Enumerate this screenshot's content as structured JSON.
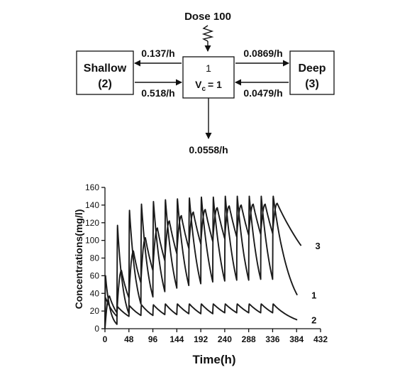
{
  "diagram": {
    "dose_label": "Dose 100",
    "central": {
      "number": "1",
      "volume": "V",
      "volume_sub": "c",
      "volume_value": "= 1"
    },
    "shallow": {
      "name": "Shallow",
      "number": "(2)"
    },
    "deep": {
      "name": "Deep",
      "number": "(3)"
    },
    "rates": {
      "central_to_shallow": "0.137/h",
      "shallow_to_central": "0.518/h",
      "central_to_deep": "0.0869/h",
      "deep_to_central": "0.0479/h",
      "elimination": "0.0558/h"
    }
  },
  "chart_data": {
    "type": "line",
    "xlabel": "Time(h)",
    "ylabel": "Concentrations(mg/l)",
    "xlim": [
      0,
      432
    ],
    "ylim": [
      0,
      160
    ],
    "xticks": [
      0,
      48,
      96,
      144,
      192,
      240,
      288,
      336,
      384,
      432
    ],
    "yticks": [
      0,
      20,
      40,
      60,
      80,
      100,
      120,
      140,
      160
    ],
    "dosing_interval_h": 24,
    "dose_count": 15,
    "series": [
      {
        "name": "1",
        "peaks": [
          60,
          117,
          134,
          141,
          144,
          146,
          147,
          148,
          149,
          149,
          150,
          150,
          150,
          150,
          150
        ],
        "troughs": [
          5,
          17,
          28,
          36,
          42,
          46,
          49,
          51,
          53,
          54,
          55,
          55,
          56,
          56,
          56
        ],
        "end_value": 38
      },
      {
        "name": "2",
        "peaks": [
          35,
          25,
          26,
          27,
          27,
          28,
          28,
          28,
          28,
          28,
          28,
          28,
          28,
          28,
          28
        ],
        "troughs": [
          14,
          14,
          15,
          15,
          16,
          16,
          17,
          17,
          17,
          18,
          18,
          18,
          18,
          18,
          18
        ],
        "end_value": 10
      },
      {
        "name": "3",
        "peaks": [
          37,
          66,
          88,
          103,
          114,
          122,
          128,
          132,
          135,
          137,
          139,
          140,
          141,
          141,
          142
        ],
        "troughs": [
          18,
          35,
          52,
          66,
          77,
          85,
          91,
          96,
          99,
          102,
          104,
          106,
          107,
          108,
          108
        ],
        "end_value": 94
      }
    ]
  }
}
